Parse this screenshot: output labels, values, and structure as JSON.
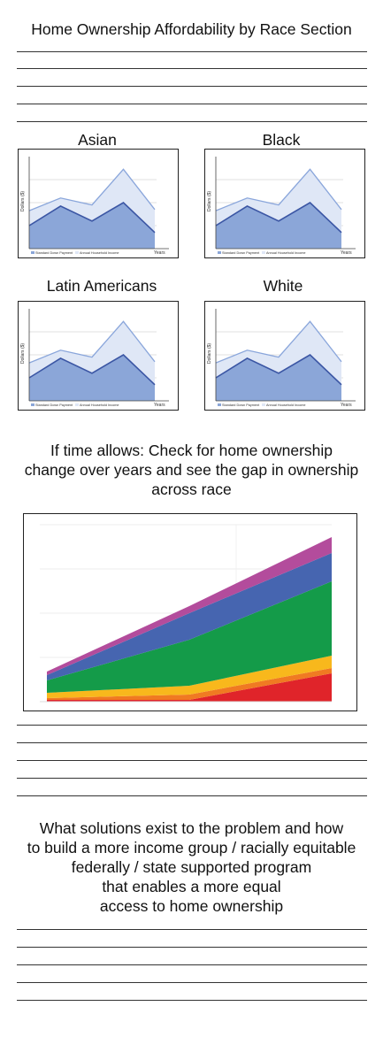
{
  "page": {
    "title": "Home Ownership Affordability by Race Section",
    "section2_text": [
      "If time allows: Check for home ownership",
      "change over years and see the gap in ownership",
      "across race"
    ],
    "section3_text": [
      "What solutions exist to the problem and how",
      "to build a more income group / racially equitable",
      "federally / state supported program",
      "that enables a more equal",
      "access to home ownership"
    ]
  },
  "race_charts": [
    {
      "label": "Asian"
    },
    {
      "label": "Black"
    },
    {
      "label": "Latin Americans"
    },
    {
      "label": "White"
    }
  ],
  "chart_data": [
    {
      "type": "area",
      "title": "Asian",
      "xlabel": "Years",
      "ylabel": "Dollars ($)",
      "legend": [
        "Standard Down Payment",
        "Annual Household Income"
      ],
      "series": [
        {
          "name": "Standard Down Payment",
          "values": [
            20,
            37,
            24,
            40,
            14
          ]
        },
        {
          "name": "Annual Household Income",
          "values": [
            33,
            44,
            38,
            69,
            34
          ]
        }
      ],
      "ylim": [
        0,
        80
      ],
      "grid": true
    },
    {
      "type": "area",
      "title": "Black",
      "xlabel": "Years",
      "ylabel": "Dollars ($)",
      "legend": [
        "Standard Down Payment",
        "Annual Household Income"
      ],
      "series": [
        {
          "name": "Standard Down Payment",
          "values": [
            20,
            37,
            24,
            40,
            14
          ]
        },
        {
          "name": "Annual Household Income",
          "values": [
            33,
            44,
            38,
            69,
            34
          ]
        }
      ],
      "ylim": [
        0,
        80
      ],
      "grid": true
    },
    {
      "type": "area",
      "title": "Latin Americans",
      "xlabel": "Years",
      "ylabel": "Dollars ($)",
      "legend": [
        "Standard Down Payment",
        "Annual Household Income"
      ],
      "series": [
        {
          "name": "Standard Down Payment",
          "values": [
            20,
            37,
            24,
            40,
            14
          ]
        },
        {
          "name": "Annual Household Income",
          "values": [
            33,
            44,
            38,
            69,
            34
          ]
        }
      ],
      "ylim": [
        0,
        80
      ],
      "grid": true
    },
    {
      "type": "area",
      "title": "White",
      "xlabel": "Years",
      "ylabel": "Dollars ($)",
      "legend": [
        "Standard Down Payment",
        "Annual Household Income"
      ],
      "series": [
        {
          "name": "Standard Down Payment",
          "values": [
            20,
            37,
            24,
            40,
            14
          ]
        },
        {
          "name": "Annual Household Income",
          "values": [
            33,
            44,
            38,
            69,
            34
          ]
        }
      ],
      "ylim": [
        0,
        80
      ],
      "grid": true
    },
    {
      "type": "area",
      "stacked": true,
      "x": [
        0,
        1,
        2
      ],
      "ylim": [
        0,
        100
      ],
      "grid": true,
      "series": [
        {
          "color": "#e0242a",
          "values": [
            1,
            1,
            16
          ]
        },
        {
          "color": "#f07a22",
          "values": [
            1,
            3,
            3
          ]
        },
        {
          "color": "#f8b81c",
          "values": [
            3,
            5,
            7
          ]
        },
        {
          "color": "#149b49",
          "values": [
            7,
            26,
            42
          ]
        },
        {
          "color": "#4665b0",
          "values": [
            3,
            15,
            16
          ]
        },
        {
          "color": "#b34c9c",
          "values": [
            2,
            4,
            9
          ]
        }
      ]
    }
  ]
}
